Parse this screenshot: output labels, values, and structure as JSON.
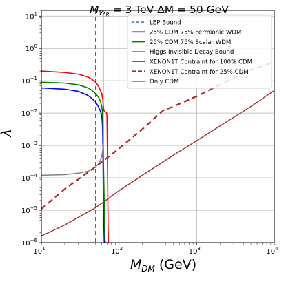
{
  "chart_data": {
    "type": "line",
    "title": "M_{W_R} = 3 TeV  ΔM = 50 GeV",
    "title_parts": {
      "M": "M",
      "W": "W",
      "R": "R",
      "rest": " = 3 TeV  ΔM = 50 GeV"
    },
    "xlabel": "M_{DM} (GeV)",
    "xlabel_parts": {
      "M": "M",
      "DM": "DM",
      "rest": " (GeV)"
    },
    "ylabel": "λ",
    "xscale": "log",
    "yscale": "log",
    "xlim": [
      10,
      10000
    ],
    "ylim": [
      1e-06,
      15
    ],
    "grid": true,
    "legend_position": "upper-right",
    "x_ticks": [
      {
        "value": 10,
        "base": "10",
        "exp": "1"
      },
      {
        "value": 100,
        "base": "10",
        "exp": "2"
      },
      {
        "value": 1000,
        "base": "10",
        "exp": "3"
      },
      {
        "value": 10000,
        "base": "10",
        "exp": "4"
      }
    ],
    "y_ticks": [
      {
        "value": 1e-06,
        "base": "10",
        "exp": "−6"
      },
      {
        "value": 1e-05,
        "base": "10",
        "exp": "−5"
      },
      {
        "value": 0.0001,
        "base": "10",
        "exp": "−4"
      },
      {
        "value": 0.001,
        "base": "10",
        "exp": "−3"
      },
      {
        "value": 0.01,
        "base": "10",
        "exp": "−2"
      },
      {
        "value": 0.1,
        "base": "10",
        "exp": "−1"
      },
      {
        "value": 1,
        "base": "10",
        "exp": "0"
      },
      {
        "value": 10,
        "base": "10",
        "exp": "1"
      }
    ],
    "vlines": [
      {
        "name": "LEP Bound",
        "x": 50,
        "color": "#1f77b4",
        "dash": "6,4",
        "width": 1.5
      },
      {
        "name": "Higgs Invisible Decay Bound",
        "x": 62.5,
        "color": "#808080",
        "dash": "",
        "width": 1.5
      }
    ],
    "series": [
      {
        "name": "25% CDM 75% Fermionic WDM",
        "color": "#0000ff",
        "dash": "",
        "width": 1.6,
        "x": [
          10,
          20,
          30,
          40,
          45,
          50,
          55,
          58,
          60,
          61,
          61.5,
          62,
          62.5,
          63,
          64,
          65,
          66
        ],
        "y": [
          0.06,
          0.055,
          0.047,
          0.035,
          0.028,
          0.022,
          0.015,
          0.011,
          0.008,
          0.005,
          0.003,
          0.001,
          0.0001,
          1e-05,
          3e-06,
          1e-06,
          1e-06
        ]
      },
      {
        "name": "25% CDM 75% Scalar WDM",
        "color": "#008000",
        "dash": "",
        "width": 1.6,
        "x": [
          10,
          20,
          30,
          40,
          45,
          50,
          55,
          58,
          60,
          61,
          62,
          62.5,
          63,
          64,
          65,
          66,
          67
        ],
        "y": [
          0.09,
          0.085,
          0.075,
          0.06,
          0.05,
          0.04,
          0.03,
          0.022,
          0.016,
          0.012,
          0.006,
          0.002,
          0.0003,
          5e-05,
          5e-06,
          1.2e-06,
          1e-06
        ]
      },
      {
        "name": "Higgs Invisible Decay Bound",
        "color": "#808080",
        "dash": "",
        "width": 1.5,
        "x": [
          10,
          20,
          30,
          40,
          50,
          55,
          60,
          62,
          62.5
        ],
        "y": [
          0.00012,
          0.000125,
          0.00014,
          0.00016,
          0.00022,
          0.00028,
          0.00045,
          0.0008,
          0.0012
        ]
      },
      {
        "name": "XENON1T Contraint for 100% CDM",
        "color": "#a52a2a",
        "dash": "",
        "width": 1.4,
        "x": [
          10,
          20,
          50,
          100,
          200,
          500,
          1000,
          2000,
          5000,
          10000
        ],
        "y": [
          1.6e-06,
          3.5e-06,
          1.2e-05,
          4e-05,
          0.00012,
          0.0005,
          0.0014,
          0.004,
          0.016,
          0.05
        ]
      },
      {
        "name": "XENON1T Contraint for 25% CDM",
        "color": "#a52a2a",
        "dash": "8,5",
        "width": 2.2,
        "x": [
          10,
          20,
          50,
          100,
          200,
          370,
          500,
          1000,
          2000,
          5000,
          10000
        ],
        "y": [
          1.1e-05,
          4.5e-05,
          0.00022,
          0.0008,
          0.0032,
          0.012,
          0.016,
          0.033,
          0.075,
          0.22,
          0.38
        ]
      },
      {
        "name": "Only CDM",
        "color": "#ff0000",
        "dash": "",
        "width": 1.6,
        "x": [
          10,
          20,
          30,
          40,
          45,
          50,
          55,
          60,
          62,
          63,
          64,
          65,
          66,
          67,
          68,
          69,
          70,
          71,
          72,
          73
        ],
        "y": [
          0.2,
          0.18,
          0.16,
          0.13,
          0.11,
          0.09,
          0.065,
          0.04,
          0.025,
          0.015,
          0.012,
          0.0115,
          0.011,
          0.0108,
          0.0108,
          0.0105,
          0.008,
          0.0005,
          1e-05,
          1e-06
        ]
      }
    ],
    "legend": [
      {
        "label": "LEP Bound",
        "color": "#1f77b4",
        "dash": "4,3",
        "width": 1.5
      },
      {
        "label": "25% CDM 75% Fermionic WDM",
        "color": "#0000ff",
        "dash": "",
        "width": 1.6
      },
      {
        "label": "25% CDM 75% Scalar WDM",
        "color": "#008000",
        "dash": "",
        "width": 1.6
      },
      {
        "label": "Higgs Invisible Decay Bound",
        "color": "#808080",
        "dash": "",
        "width": 1.5
      },
      {
        "label": "XENON1T Contraint for 100% CDM",
        "color": "#a52a2a",
        "dash": "",
        "width": 1.4
      },
      {
        "label": "XENON1T Contraint for 25% CDM",
        "color": "#a52a2a",
        "dash": "6,3",
        "width": 2.2
      },
      {
        "label": "Only CDM",
        "color": "#ff0000",
        "dash": "",
        "width": 1.6
      }
    ]
  }
}
